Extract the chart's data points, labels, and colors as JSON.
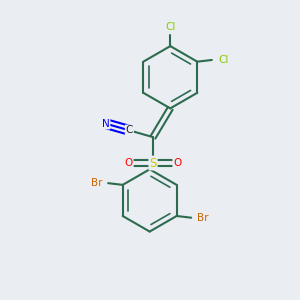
{
  "background_color": "#eaedf2",
  "bond_color": "#2d6b4f",
  "atom_colors": {
    "N": "#0000ff",
    "C": "#333333",
    "S": "#cccc00",
    "O": "#ff0000",
    "Br": "#cc6600",
    "Cl": "#88cc00"
  },
  "figsize": [
    3.0,
    3.0
  ],
  "dpi": 100
}
